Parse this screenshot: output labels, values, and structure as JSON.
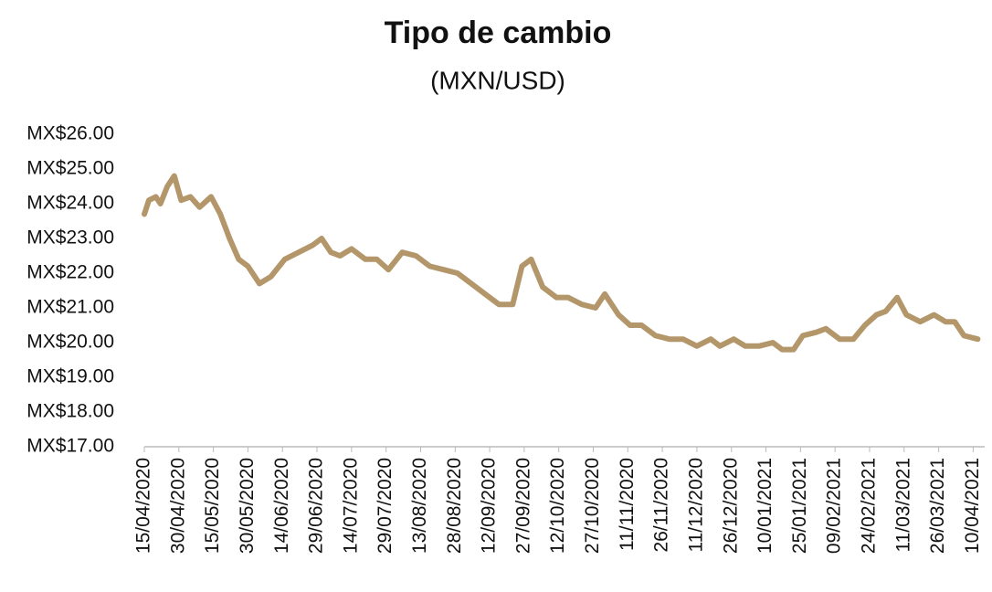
{
  "chart_data": {
    "type": "line",
    "title": "Tipo de cambio",
    "subtitle": "(MXN/USD)",
    "x": [
      "15/04/2020",
      "17/04/2020",
      "20/04/2020",
      "22/04/2020",
      "25/04/2020",
      "28/04/2020",
      "01/05/2020",
      "05/05/2020",
      "09/05/2020",
      "14/05/2020",
      "18/05/2020",
      "22/05/2020",
      "26/05/2020",
      "30/05/2020",
      "04/06/2020",
      "09/06/2020",
      "15/06/2020",
      "21/06/2020",
      "27/06/2020",
      "01/07/2020",
      "05/07/2020",
      "09/07/2020",
      "14/07/2020",
      "20/07/2020",
      "25/07/2020",
      "30/07/2020",
      "05/08/2020",
      "11/08/2020",
      "17/08/2020",
      "23/08/2020",
      "29/08/2020",
      "04/09/2020",
      "10/09/2020",
      "16/09/2020",
      "22/09/2020",
      "26/09/2020",
      "30/09/2020",
      "05/10/2020",
      "11/10/2020",
      "16/10/2020",
      "22/10/2020",
      "28/10/2020",
      "01/11/2020",
      "07/11/2020",
      "12/11/2020",
      "17/11/2020",
      "23/11/2020",
      "29/11/2020",
      "05/12/2020",
      "11/12/2020",
      "17/12/2020",
      "21/12/2020",
      "27/12/2020",
      "01/01/2021",
      "07/01/2021",
      "13/01/2021",
      "17/01/2021",
      "22/01/2021",
      "26/01/2021",
      "01/02/2021",
      "05/02/2021",
      "11/02/2021",
      "17/02/2021",
      "22/02/2021",
      "27/02/2021",
      "03/03/2021",
      "08/03/2021",
      "12/03/2021",
      "18/03/2021",
      "24/03/2021",
      "29/03/2021",
      "02/04/2021",
      "06/04/2021",
      "12/04/2021"
    ],
    "series": [
      {
        "name": "MXN/USD",
        "color": "#b3966a",
        "values": [
          23.7,
          24.1,
          24.2,
          24.0,
          24.5,
          24.8,
          24.1,
          24.2,
          23.9,
          24.2,
          23.7,
          23.0,
          22.4,
          22.2,
          21.7,
          21.9,
          22.4,
          22.6,
          22.8,
          23.0,
          22.6,
          22.5,
          22.7,
          22.4,
          22.4,
          22.1,
          22.6,
          22.5,
          22.2,
          22.1,
          22.0,
          21.7,
          21.4,
          21.1,
          21.1,
          22.2,
          22.4,
          21.6,
          21.3,
          21.3,
          21.1,
          21.0,
          21.4,
          20.8,
          20.5,
          20.5,
          20.2,
          20.1,
          20.1,
          19.9,
          20.1,
          19.9,
          20.1,
          19.9,
          19.9,
          20.0,
          19.8,
          19.8,
          20.2,
          20.3,
          20.4,
          20.1,
          20.1,
          20.5,
          20.8,
          20.9,
          21.3,
          20.8,
          20.6,
          20.8,
          20.6,
          20.6,
          20.2,
          20.1
        ]
      }
    ],
    "xlim": [
      "15/04/2020",
      "15/04/2021"
    ],
    "xticks": [
      "15/04/2020",
      "30/04/2020",
      "15/05/2020",
      "30/05/2020",
      "14/06/2020",
      "29/06/2020",
      "14/07/2020",
      "29/07/2020",
      "13/08/2020",
      "28/08/2020",
      "12/09/2020",
      "27/09/2020",
      "12/10/2020",
      "27/10/2020",
      "11/11/2020",
      "26/11/2020",
      "11/12/2020",
      "26/12/2020",
      "10/01/2021",
      "25/01/2021",
      "09/02/2021",
      "24/02/2021",
      "11/03/2021",
      "26/03/2021",
      "10/04/2021"
    ],
    "ylim": [
      17,
      26
    ],
    "yticks": [
      {
        "value": 17,
        "label": "MX$17.00"
      },
      {
        "value": 18,
        "label": "MX$18.00"
      },
      {
        "value": 19,
        "label": "MX$19.00"
      },
      {
        "value": 20,
        "label": "MX$20.00"
      },
      {
        "value": 21,
        "label": "MX$21.00"
      },
      {
        "value": 22,
        "label": "MX$22.00"
      },
      {
        "value": 23,
        "label": "MX$23.00"
      },
      {
        "value": 24,
        "label": "MX$24.00"
      },
      {
        "value": 25,
        "label": "MX$25.00"
      },
      {
        "value": 26,
        "label": "MX$26.00"
      }
    ],
    "grid": false
  }
}
